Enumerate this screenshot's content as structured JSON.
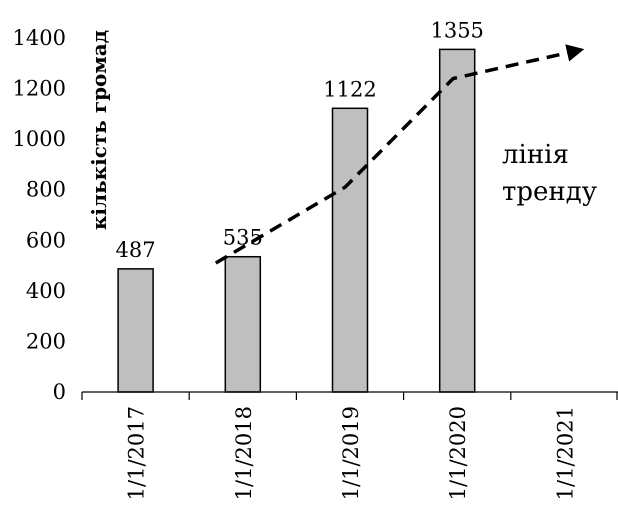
{
  "chart_data": {
    "type": "bar",
    "categories": [
      "1/1/2017",
      "1/1/2018",
      "1/1/2019",
      "1/1/2020",
      "1/1/2021"
    ],
    "values": [
      487,
      535,
      1122,
      1355,
      null
    ],
    "data_labels": [
      "487",
      "535",
      "1122",
      "1355",
      ""
    ],
    "ylabel": "кількість громад",
    "ylim": [
      0,
      1400
    ],
    "yticks": [
      0,
      200,
      400,
      600,
      800,
      1000,
      1200,
      1400
    ],
    "grid": false,
    "bar_color": "#bfbfbf",
    "bar_edge_color": "#000000",
    "trend_line": {
      "style": "dashed",
      "color": "#000000",
      "points": [
        {
          "x": "1/1/2018",
          "y": 510
        },
        {
          "x": "1/1/2019",
          "y": 810
        },
        {
          "x": "1/1/2020",
          "y": 1240
        },
        {
          "x": "1/1/2021",
          "y": 1350
        }
      ]
    },
    "annotation": {
      "lines": [
        "лінія",
        "тренду"
      ]
    }
  }
}
